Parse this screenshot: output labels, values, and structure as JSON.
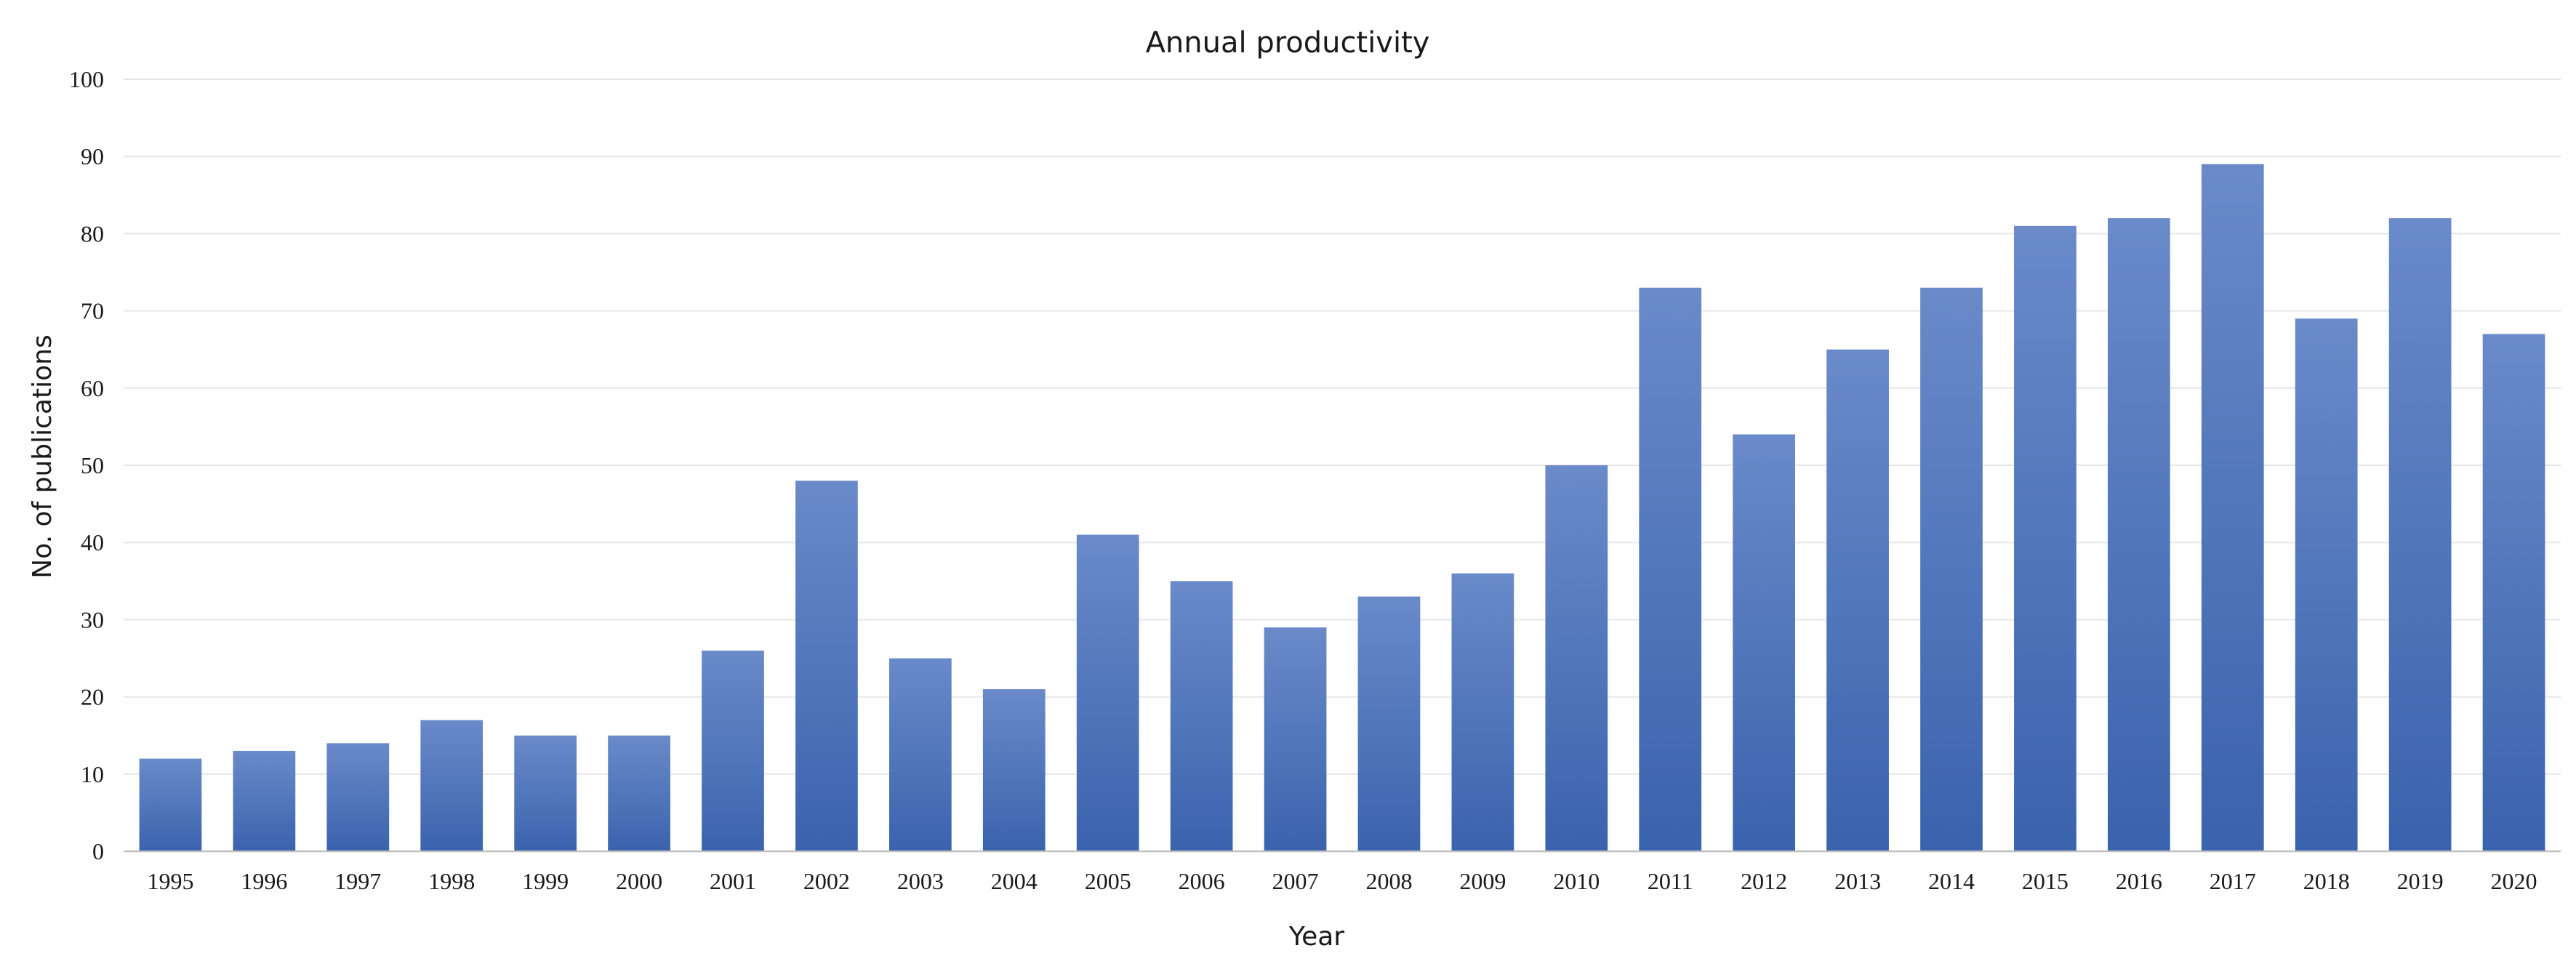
{
  "chart_data": {
    "type": "bar",
    "title": "Annual productivity",
    "xlabel": "Year",
    "ylabel": "No. of publications",
    "ylim": [
      0,
      100
    ],
    "yticks": [
      0,
      10,
      20,
      30,
      40,
      50,
      60,
      70,
      80,
      90,
      100
    ],
    "grid": true,
    "legend": "none",
    "categories": [
      "1995",
      "1996",
      "1997",
      "1998",
      "1999",
      "2000",
      "2001",
      "2002",
      "2003",
      "2004",
      "2005",
      "2006",
      "2007",
      "2008",
      "2009",
      "2010",
      "2011",
      "2012",
      "2013",
      "2014",
      "2015",
      "2016",
      "2017",
      "2018",
      "2019",
      "2020"
    ],
    "values": [
      12,
      13,
      14,
      17,
      15,
      15,
      26,
      48,
      25,
      21,
      41,
      35,
      29,
      33,
      36,
      50,
      73,
      54,
      65,
      73,
      81,
      82,
      89,
      69,
      82,
      67
    ],
    "bar_color_top": "#6a8ac9",
    "bar_color_bottom": "#3a63ad"
  }
}
